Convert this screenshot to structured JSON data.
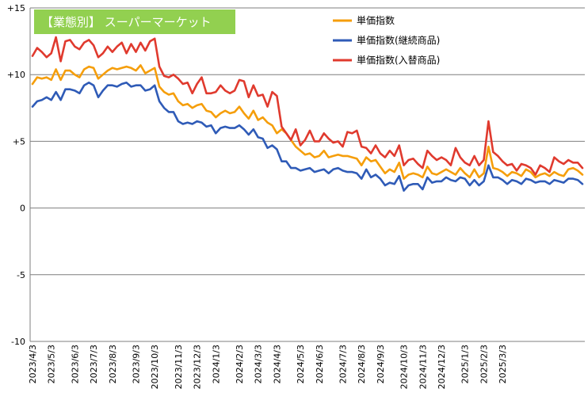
{
  "chart_data": {
    "type": "line",
    "title": "【業態別】 スーパーマーケット",
    "title_color": "#92D050",
    "ylim": [
      -10,
      15
    ],
    "yticks": [
      {
        "value": 15,
        "label": "+15"
      },
      {
        "value": 10,
        "label": "+10"
      },
      {
        "value": 5,
        "label": "+5"
      },
      {
        "value": 0,
        "label": "0"
      },
      {
        "value": -5,
        "label": "-5"
      },
      {
        "value": -10,
        "label": "-10"
      }
    ],
    "grid": true,
    "legend_position": "top-right",
    "x_count": 118,
    "xticks": [
      {
        "index": 0,
        "label": "2023/4/3"
      },
      {
        "index": 4,
        "label": "2023/5/3"
      },
      {
        "index": 9,
        "label": "2023/6/3"
      },
      {
        "index": 13,
        "label": "2023/7/3"
      },
      {
        "index": 17,
        "label": "2023/8/3"
      },
      {
        "index": 22,
        "label": "2023/9/3"
      },
      {
        "index": 26,
        "label": "2023/10/3"
      },
      {
        "index": 31,
        "label": "2023/11/3"
      },
      {
        "index": 35,
        "label": "2023/12/3"
      },
      {
        "index": 39,
        "label": "2024/1/3"
      },
      {
        "index": 44,
        "label": "2024/2/3"
      },
      {
        "index": 48,
        "label": "2024/3/3"
      },
      {
        "index": 52,
        "label": "2024/4/3"
      },
      {
        "index": 57,
        "label": "2024/5/3"
      },
      {
        "index": 61,
        "label": "2024/6/3"
      },
      {
        "index": 66,
        "label": "2024/7/3"
      },
      {
        "index": 70,
        "label": "2024/8/3"
      },
      {
        "index": 74,
        "label": "2024/9/3"
      },
      {
        "index": 79,
        "label": "2024/10/3"
      },
      {
        "index": 83,
        "label": "2024/11/3"
      },
      {
        "index": 87,
        "label": "2024/12/3"
      },
      {
        "index": 92,
        "label": "2025/1/3"
      },
      {
        "index": 96,
        "label": "2025/2/3"
      },
      {
        "index": 100,
        "label": "2025/3/3"
      }
    ],
    "series": [
      {
        "name": "単価指数",
        "color": "#F59E0B",
        "values": [
          9.3,
          9.8,
          9.7,
          9.8,
          9.6,
          10.4,
          9.6,
          10.3,
          10.3,
          10.0,
          9.8,
          10.4,
          10.6,
          10.5,
          9.7,
          10.0,
          10.3,
          10.5,
          10.4,
          10.5,
          10.6,
          10.5,
          10.3,
          10.7,
          10.1,
          10.3,
          10.5,
          9.1,
          8.7,
          8.5,
          8.6,
          8.0,
          7.7,
          7.8,
          7.5,
          7.7,
          7.8,
          7.3,
          7.2,
          6.8,
          7.1,
          7.3,
          7.1,
          7.2,
          7.6,
          7.1,
          6.7,
          7.3,
          6.6,
          6.8,
          6.4,
          6.2,
          5.6,
          5.9,
          5.6,
          5.1,
          4.6,
          4.3,
          4.0,
          4.1,
          3.8,
          3.9,
          4.3,
          3.8,
          3.9,
          4.0,
          3.9,
          3.9,
          3.8,
          3.7,
          3.2,
          3.8,
          3.5,
          3.6,
          3.1,
          2.6,
          2.9,
          2.7,
          3.4,
          2.2,
          2.5,
          2.6,
          2.5,
          2.3,
          3.1,
          2.6,
          2.5,
          2.7,
          2.9,
          2.7,
          2.5,
          3.0,
          2.6,
          2.3,
          2.9,
          2.3,
          2.6,
          4.6,
          3.0,
          2.9,
          2.7,
          2.4,
          2.7,
          2.6,
          2.4,
          2.9,
          2.7,
          2.3,
          2.5,
          2.6,
          2.4,
          2.7,
          2.5,
          2.4,
          2.9,
          3.0,
          2.8,
          2.5
        ]
      },
      {
        "name": "単価指数(継続商品)",
        "color": "#2F5BB7",
        "values": [
          7.6,
          8.0,
          8.1,
          8.3,
          8.1,
          8.7,
          8.1,
          8.9,
          8.9,
          8.8,
          8.6,
          9.2,
          9.4,
          9.2,
          8.3,
          8.8,
          9.2,
          9.2,
          9.1,
          9.3,
          9.4,
          9.1,
          9.2,
          9.2,
          8.8,
          8.9,
          9.2,
          8.0,
          7.5,
          7.2,
          7.2,
          6.5,
          6.3,
          6.4,
          6.3,
          6.5,
          6.4,
          6.1,
          6.2,
          5.6,
          6.0,
          6.1,
          6.0,
          6.0,
          6.2,
          5.9,
          5.5,
          5.9,
          5.3,
          5.2,
          4.5,
          4.7,
          4.4,
          3.5,
          3.5,
          3.0,
          3.0,
          2.8,
          2.9,
          3.0,
          2.7,
          2.8,
          2.9,
          2.6,
          2.9,
          3.0,
          2.8,
          2.7,
          2.7,
          2.6,
          2.2,
          2.9,
          2.3,
          2.5,
          2.2,
          1.7,
          1.9,
          1.8,
          2.4,
          1.3,
          1.7,
          1.8,
          1.8,
          1.4,
          2.3,
          1.9,
          2.0,
          2.0,
          2.3,
          2.1,
          2.0,
          2.3,
          2.2,
          1.7,
          2.1,
          1.7,
          2.0,
          3.2,
          2.3,
          2.3,
          2.1,
          1.8,
          2.1,
          2.0,
          1.8,
          2.2,
          2.1,
          1.9,
          2.0,
          2.0,
          1.8,
          2.1,
          2.0,
          1.9,
          2.2,
          2.2,
          2.1,
          1.8
        ]
      },
      {
        "name": "単価指数(入替商品)",
        "color": "#E03A2E",
        "values": [
          11.4,
          12.0,
          11.7,
          11.3,
          11.6,
          12.8,
          11.0,
          12.5,
          12.6,
          12.1,
          11.9,
          12.4,
          12.6,
          12.2,
          11.3,
          11.6,
          12.1,
          11.7,
          12.1,
          12.4,
          11.6,
          12.3,
          11.7,
          12.4,
          11.8,
          12.5,
          12.7,
          10.6,
          9.9,
          9.8,
          10.0,
          9.7,
          9.3,
          9.4,
          8.6,
          9.3,
          9.8,
          8.6,
          8.6,
          8.7,
          9.2,
          8.8,
          8.6,
          8.8,
          9.6,
          9.5,
          8.3,
          9.2,
          8.4,
          8.5,
          7.6,
          8.7,
          8.4,
          6.1,
          5.6,
          5.1,
          5.9,
          4.7,
          5.1,
          5.8,
          5.0,
          5.0,
          5.6,
          5.2,
          4.9,
          5.0,
          4.6,
          5.7,
          5.6,
          5.8,
          4.6,
          4.5,
          4.1,
          4.7,
          4.1,
          3.8,
          4.3,
          3.9,
          4.7,
          3.2,
          3.6,
          3.7,
          3.3,
          3.0,
          4.3,
          3.9,
          3.6,
          3.8,
          3.6,
          3.2,
          4.5,
          3.8,
          3.4,
          3.2,
          3.9,
          3.2,
          3.6,
          6.5,
          4.2,
          3.9,
          3.5,
          3.2,
          3.3,
          2.8,
          3.3,
          3.2,
          3.0,
          2.5,
          3.2,
          3.0,
          2.7,
          3.8,
          3.5,
          3.3,
          3.6,
          3.4,
          3.4,
          3.0
        ]
      }
    ]
  }
}
